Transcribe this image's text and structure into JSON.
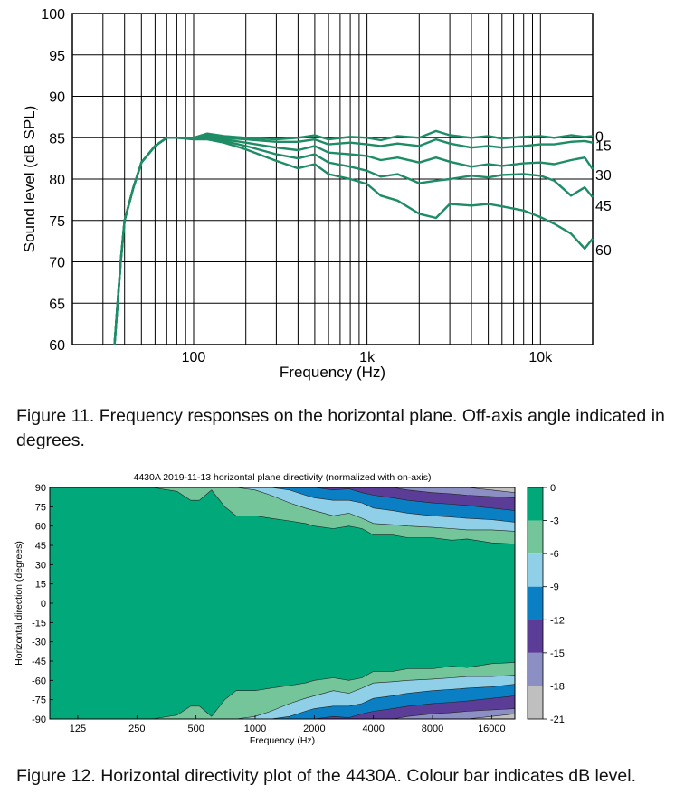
{
  "chart_data": [
    {
      "type": "line",
      "xlabel": "Frequency (Hz)",
      "ylabel": "Sound level (dB SPL)",
      "x_scale": "log",
      "xlim": [
        20,
        20000
      ],
      "ylim": [
        60,
        100
      ],
      "x_ticks": [
        {
          "value": 100,
          "label": "100"
        },
        {
          "value": 1000,
          "label": "1k"
        },
        {
          "value": 10000,
          "label": "10k"
        }
      ],
      "y_ticks": [
        60,
        65,
        70,
        75,
        80,
        85,
        90,
        95,
        100
      ],
      "grid": true,
      "colors": {
        "line": "#1e8c64",
        "grid": "#000000"
      },
      "series": [
        {
          "name": "0",
          "x": [
            35,
            38,
            40,
            45,
            50,
            60,
            70,
            80,
            100,
            120,
            150,
            200,
            300,
            400,
            500,
            600,
            800,
            1000,
            1200,
            1500,
            2000,
            2500,
            3000,
            4000,
            5000,
            6000,
            8000,
            10000,
            12000,
            15000,
            18000,
            20000
          ],
          "y": [
            60,
            70,
            75,
            79,
            82,
            84,
            85,
            85,
            85,
            85.5,
            85.2,
            85,
            84.8,
            85,
            85.3,
            84.8,
            85.1,
            85,
            84.7,
            85.2,
            85,
            85.8,
            85.3,
            85,
            85.2,
            84.9,
            85.1,
            85.2,
            85,
            85.3,
            85.1,
            85.2
          ]
        },
        {
          "name": "15",
          "x": [
            35,
            38,
            40,
            45,
            50,
            60,
            70,
            80,
            100,
            120,
            150,
            200,
            300,
            400,
            500,
            600,
            800,
            1000,
            1200,
            1500,
            2000,
            2500,
            3000,
            4000,
            5000,
            6000,
            8000,
            10000,
            12000,
            15000,
            18000,
            20000
          ],
          "y": [
            60,
            70,
            75,
            79,
            82,
            84,
            85,
            85,
            85,
            85.3,
            85,
            84.8,
            84.5,
            84.5,
            84.8,
            84.2,
            84.4,
            84.2,
            84,
            84.3,
            84,
            84.8,
            84.3,
            83.8,
            84,
            83.8,
            84,
            84.2,
            84.2,
            84.5,
            84.6,
            84.4
          ]
        },
        {
          "name": "30",
          "x": [
            35,
            38,
            40,
            45,
            50,
            60,
            70,
            80,
            100,
            120,
            150,
            200,
            300,
            400,
            500,
            600,
            800,
            1000,
            1200,
            1500,
            2000,
            2500,
            3000,
            4000,
            5000,
            6000,
            8000,
            10000,
            12000,
            15000,
            18000,
            20000
          ],
          "y": [
            60,
            70,
            75,
            79,
            82,
            84,
            85,
            85,
            85,
            85.1,
            84.8,
            84.4,
            83.8,
            83.5,
            84,
            83.2,
            83,
            82.8,
            82.3,
            82.6,
            82,
            82.6,
            82.1,
            81.5,
            81.8,
            81.6,
            81.9,
            82,
            81.8,
            82.3,
            82.6,
            81.2
          ]
        },
        {
          "name": "45",
          "x": [
            35,
            38,
            40,
            45,
            50,
            60,
            70,
            80,
            100,
            120,
            150,
            200,
            300,
            400,
            500,
            600,
            800,
            1000,
            1200,
            1500,
            2000,
            2500,
            3000,
            4000,
            5000,
            6000,
            8000,
            10000,
            12000,
            15000,
            18000,
            20000
          ],
          "y": [
            60,
            70,
            75,
            79,
            82,
            84,
            85,
            85,
            84.9,
            85,
            84.6,
            84,
            83,
            82.5,
            83,
            82,
            81.5,
            81,
            80.3,
            80.6,
            79.5,
            79.8,
            80,
            80.4,
            80.2,
            80.5,
            80.6,
            80.4,
            79.8,
            78,
            79,
            77.8
          ]
        },
        {
          "name": "60",
          "x": [
            35,
            38,
            40,
            45,
            50,
            60,
            70,
            80,
            100,
            120,
            150,
            200,
            300,
            400,
            500,
            600,
            800,
            1000,
            1200,
            1500,
            2000,
            2500,
            3000,
            4000,
            5000,
            6000,
            8000,
            10000,
            12000,
            15000,
            18000,
            20000
          ],
          "y": [
            60,
            70,
            75,
            79,
            82,
            84,
            85,
            85,
            84.8,
            84.8,
            84.4,
            83.6,
            82.2,
            81.3,
            81.8,
            80.6,
            80,
            79.4,
            78,
            77.4,
            75.8,
            75.3,
            77,
            76.8,
            77,
            76.7,
            76.2,
            75.4,
            74.6,
            73.4,
            71.6,
            72.8
          ]
        }
      ],
      "caption": "Figure 11. Frequency responses on the horizontal plane. Off-axis angle indicated in degrees."
    },
    {
      "type": "heatmap",
      "title": "4430A 2019-11-13 horizontal plane directivity (normalized with on-axis)",
      "xlabel": "Frequency (Hz)",
      "ylabel": "Horizontal direction (degrees)",
      "x_scale": "log",
      "xlim": [
        90,
        21000
      ],
      "ylim": [
        -90,
        90
      ],
      "x_ticks": [
        125,
        250,
        500,
        1000,
        2000,
        4000,
        8000,
        16000
      ],
      "y_ticks": [
        90,
        75,
        60,
        45,
        30,
        15,
        0,
        -15,
        -30,
        -45,
        -60,
        -75,
        -90
      ],
      "colorbar": {
        "ticks": [
          0,
          -3,
          -6,
          -9,
          -12,
          -15,
          -18,
          -21
        ],
        "colors": [
          "#00a87a",
          "#74c69a",
          "#8fcfe8",
          "#0b7fc4",
          "#5b3d98",
          "#8c8fc4",
          "#bfbfbf"
        ]
      },
      "contours_abs_angle": {
        "x": [
          90,
          300,
          400,
          470,
          520,
          600,
          700,
          800,
          1000,
          1200,
          1500,
          1800,
          2000,
          2500,
          3000,
          3500,
          4000,
          5000,
          6000,
          8000,
          10000,
          12000,
          16000,
          21000
        ],
        "c3": [
          90,
          90,
          87,
          80,
          80,
          88,
          75,
          68,
          68,
          66,
          64,
          62,
          60,
          58,
          60,
          58,
          53,
          53,
          51,
          51,
          49,
          50,
          47,
          46
        ],
        "c6": [
          90,
          90,
          90,
          90,
          90,
          90,
          90,
          90,
          88,
          84,
          78,
          74,
          72,
          68,
          70,
          66,
          62,
          61,
          60,
          59,
          58,
          57,
          57,
          56
        ],
        "c9": [
          90,
          90,
          90,
          90,
          90,
          90,
          90,
          90,
          90,
          90,
          88,
          84,
          82,
          80,
          80,
          78,
          74,
          72,
          70,
          68,
          67,
          66,
          65,
          63
        ],
        "c12": [
          90,
          90,
          90,
          90,
          90,
          90,
          90,
          90,
          90,
          90,
          90,
          90,
          90,
          88,
          89,
          86,
          84,
          82,
          80,
          78,
          77,
          76,
          74,
          72
        ],
        "c15": [
          90,
          90,
          90,
          90,
          90,
          90,
          90,
          90,
          90,
          90,
          90,
          90,
          90,
          90,
          90,
          90,
          90,
          90,
          88,
          86,
          85,
          84,
          83,
          82
        ],
        "c18": [
          90,
          90,
          90,
          90,
          90,
          90,
          90,
          90,
          90,
          90,
          90,
          90,
          90,
          90,
          90,
          90,
          90,
          90,
          90,
          90,
          90,
          90,
          88,
          86
        ]
      },
      "caption": "Figure 12. Horizontal directivity plot of the 4430A. Colour bar indicates dB level."
    }
  ]
}
